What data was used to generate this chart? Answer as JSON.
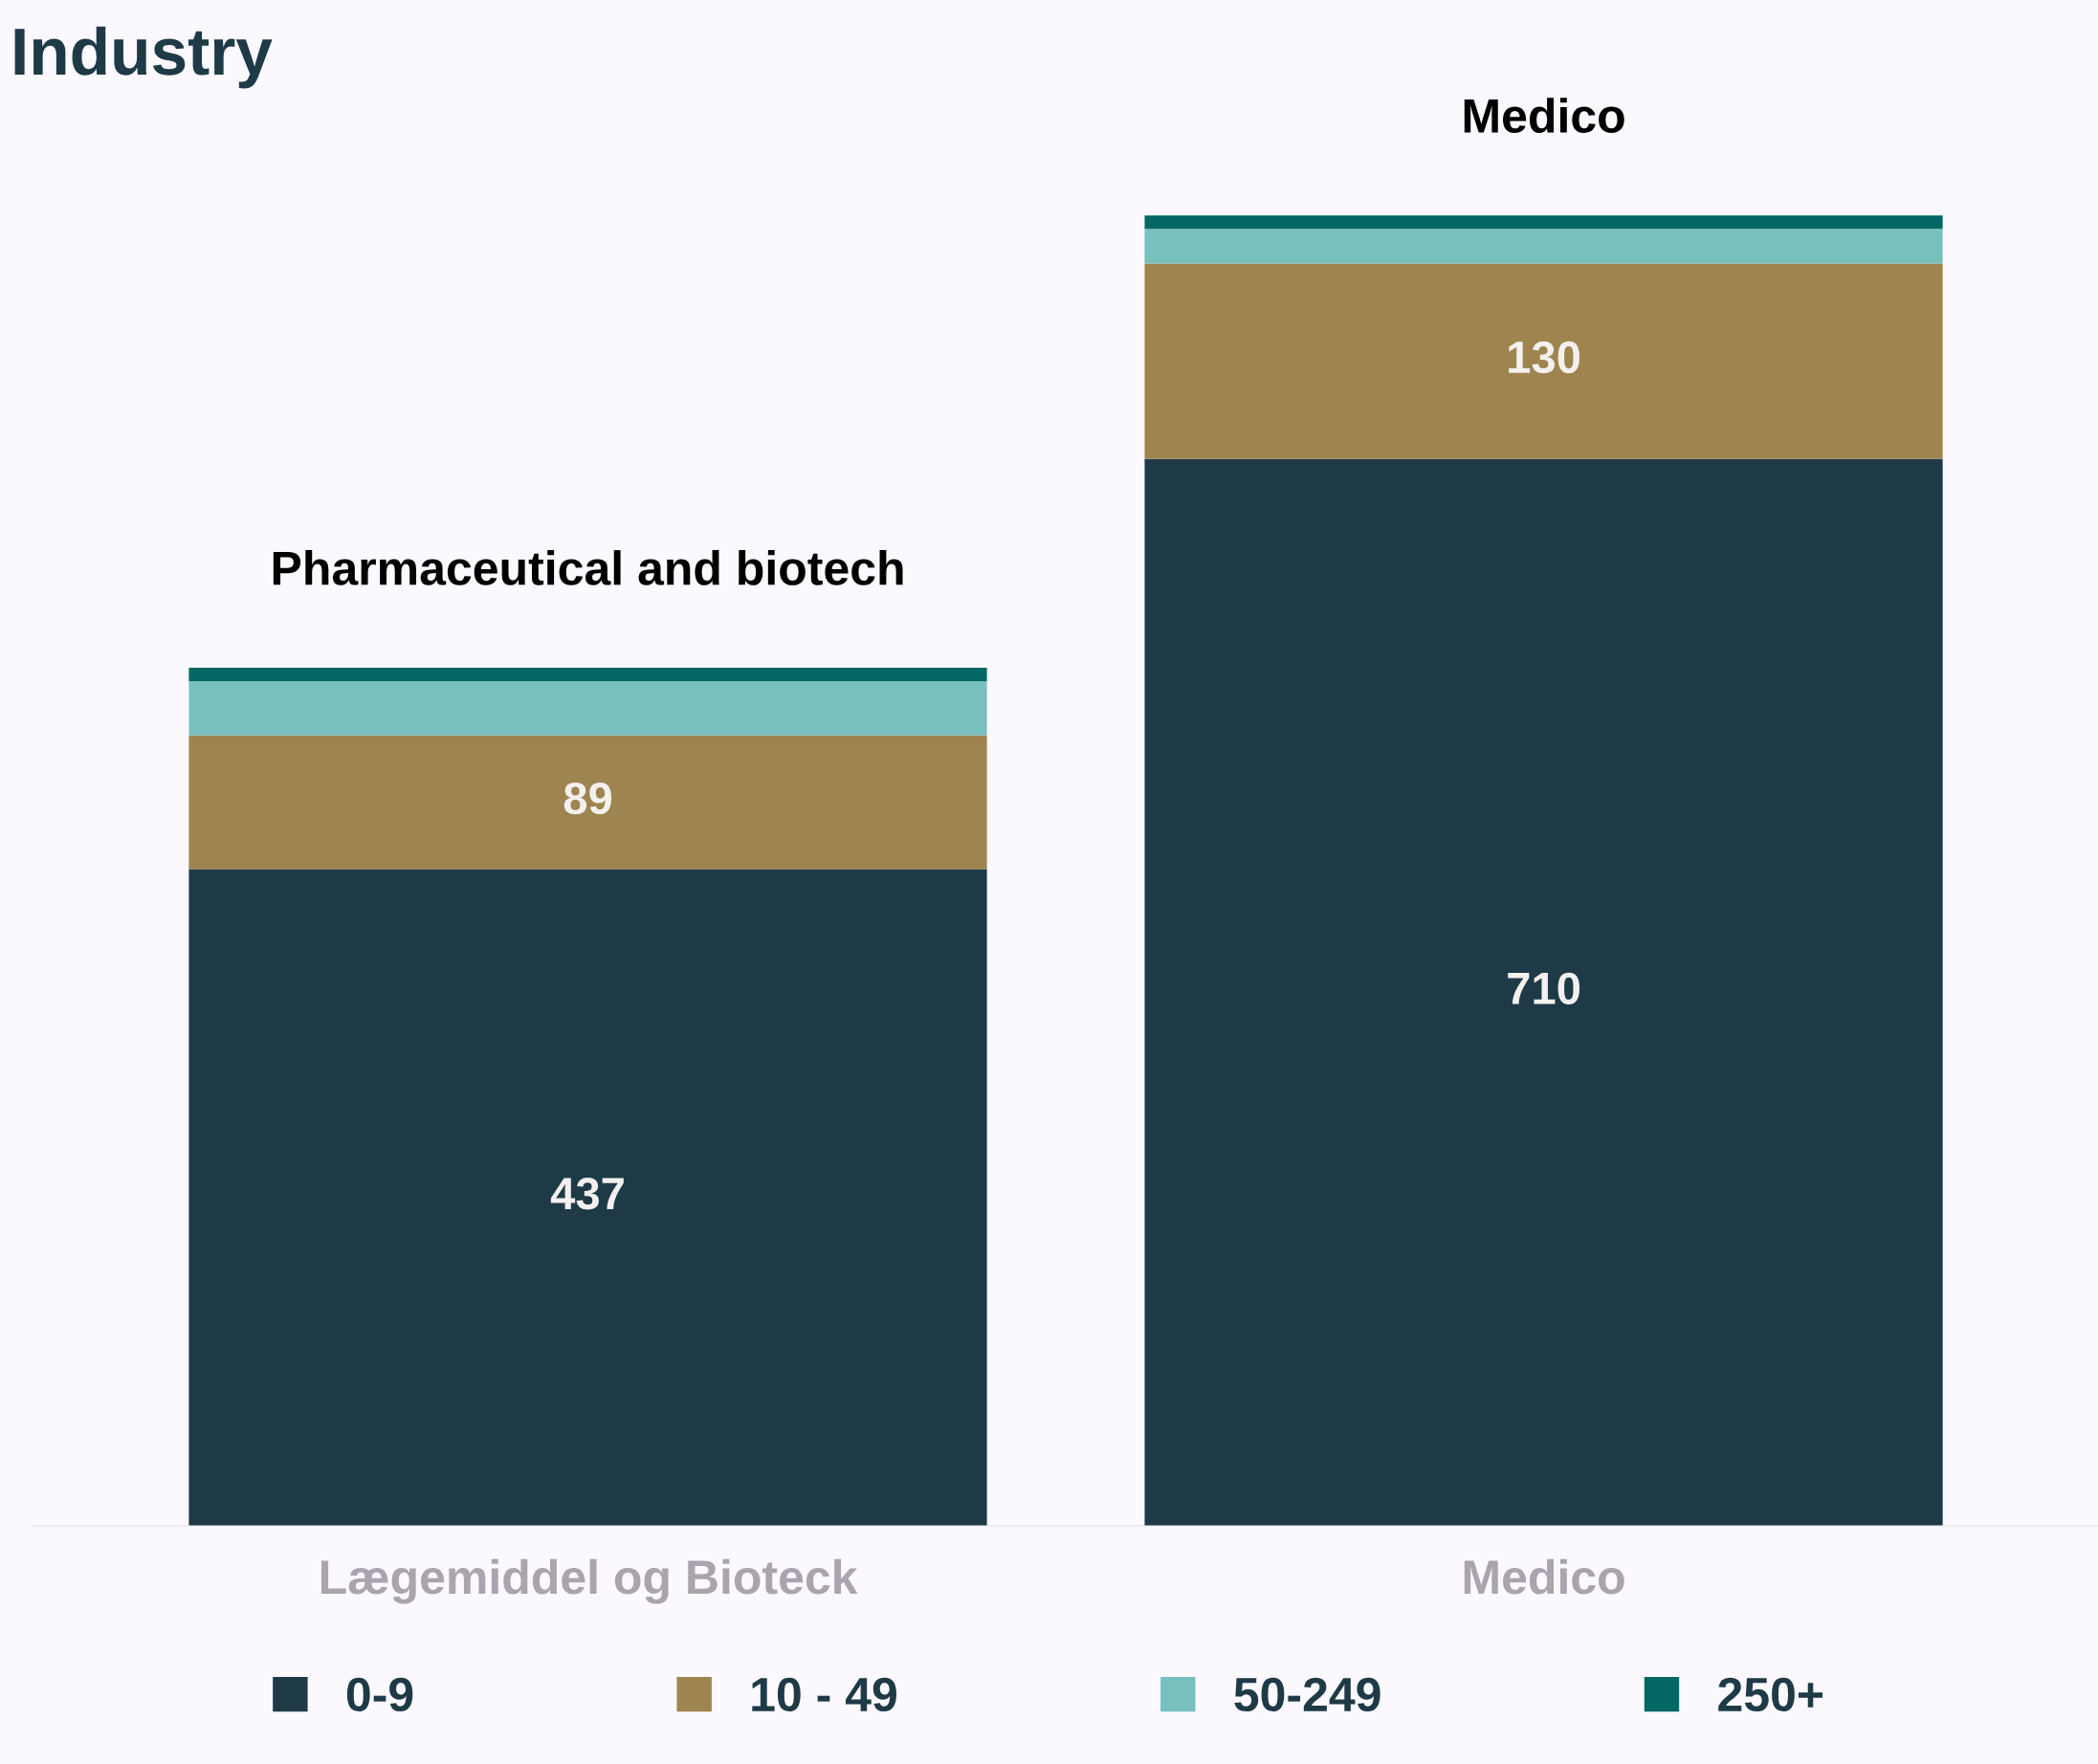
{
  "chart_data": {
    "type": "bar",
    "title": "Industry",
    "stacked": true,
    "categories": [
      "Lægemiddel og Bioteck",
      "Medico"
    ],
    "series": [
      {
        "name": "0-9",
        "color": "#1f3a47",
        "values": [
          437,
          710
        ],
        "value_labels": [
          "437",
          "710"
        ]
      },
      {
        "name": "10 - 49",
        "color": "#9e844f",
        "values": [
          89,
          130
        ],
        "value_labels": [
          "89",
          "130"
        ]
      },
      {
        "name": "50-249",
        "color": "#78c0bd",
        "values": [
          36,
          23
        ],
        "value_labels": [
          null,
          null
        ]
      },
      {
        "name": "250+",
        "color": "#036864",
        "values": [
          9,
          9
        ],
        "value_labels": [
          null,
          null
        ]
      }
    ],
    "annotations": [
      "Pharmaceutical and biotech",
      "Medico"
    ],
    "legend": "bottom",
    "grid": false
  }
}
